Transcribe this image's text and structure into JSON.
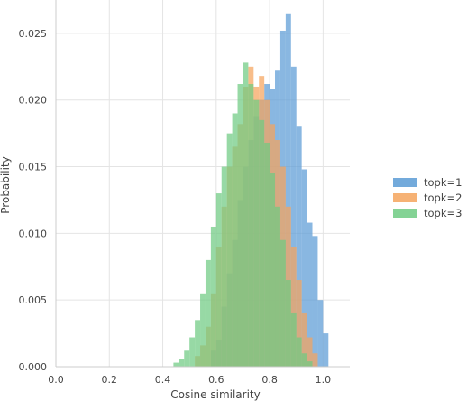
{
  "chart_data": {
    "type": "histogram",
    "xlabel": "Cosine similarity",
    "ylabel": "Probability",
    "xlim": [
      0.0,
      1.1
    ],
    "ylim": [
      0.0,
      0.0275
    ],
    "xticks": [
      "0.0",
      "0.2",
      "0.4",
      "0.6",
      "0.8",
      "1.0"
    ],
    "yticks": [
      "0.000",
      "0.005",
      "0.010",
      "0.015",
      "0.020",
      "0.025"
    ],
    "grid": true,
    "legend_position": "right",
    "bin_width": 0.02,
    "series": [
      {
        "name": "topk=1",
        "color": "#5b9bd5",
        "bins": [
          [
            0.58,
            0.0012
          ],
          [
            0.6,
            0.002
          ],
          [
            0.62,
            0.0045
          ],
          [
            0.64,
            0.007
          ],
          [
            0.66,
            0.0095
          ],
          [
            0.68,
            0.0125
          ],
          [
            0.7,
            0.015
          ],
          [
            0.72,
            0.017
          ],
          [
            0.74,
            0.0188
          ],
          [
            0.76,
            0.02
          ],
          [
            0.78,
            0.0212
          ],
          [
            0.8,
            0.0208
          ],
          [
            0.82,
            0.0222
          ],
          [
            0.84,
            0.0252
          ],
          [
            0.86,
            0.0265
          ],
          [
            0.88,
            0.0225
          ],
          [
            0.9,
            0.018
          ],
          [
            0.92,
            0.0148
          ],
          [
            0.94,
            0.0108
          ],
          [
            0.96,
            0.0098
          ],
          [
            0.98,
            0.005
          ],
          [
            1.0,
            0.0025
          ]
        ]
      },
      {
        "name": "topk=2",
        "color": "#f5a45d",
        "bins": [
          [
            0.52,
            0.0008
          ],
          [
            0.54,
            0.0016
          ],
          [
            0.56,
            0.003
          ],
          [
            0.58,
            0.0055
          ],
          [
            0.6,
            0.009
          ],
          [
            0.62,
            0.012
          ],
          [
            0.64,
            0.015
          ],
          [
            0.66,
            0.0165
          ],
          [
            0.68,
            0.0182
          ],
          [
            0.7,
            0.021
          ],
          [
            0.72,
            0.0225
          ],
          [
            0.74,
            0.021
          ],
          [
            0.76,
            0.0218
          ],
          [
            0.78,
            0.02
          ],
          [
            0.8,
            0.0182
          ],
          [
            0.82,
            0.017
          ],
          [
            0.84,
            0.015
          ],
          [
            0.86,
            0.012
          ],
          [
            0.88,
            0.009
          ],
          [
            0.9,
            0.0065
          ],
          [
            0.92,
            0.004
          ],
          [
            0.94,
            0.0022
          ],
          [
            0.96,
            0.001
          ]
        ]
      },
      {
        "name": "topk=3",
        "color": "#6fcb82",
        "bins": [
          [
            0.44,
            0.0003
          ],
          [
            0.46,
            0.0006
          ],
          [
            0.48,
            0.0012
          ],
          [
            0.5,
            0.0022
          ],
          [
            0.52,
            0.0035
          ],
          [
            0.54,
            0.0055
          ],
          [
            0.56,
            0.008
          ],
          [
            0.58,
            0.0105
          ],
          [
            0.6,
            0.013
          ],
          [
            0.62,
            0.015
          ],
          [
            0.64,
            0.0175
          ],
          [
            0.66,
            0.019
          ],
          [
            0.68,
            0.0212
          ],
          [
            0.7,
            0.0228
          ],
          [
            0.72,
            0.0212
          ],
          [
            0.74,
            0.02
          ],
          [
            0.76,
            0.0185
          ],
          [
            0.78,
            0.0168
          ],
          [
            0.8,
            0.0145
          ],
          [
            0.82,
            0.012
          ],
          [
            0.84,
            0.0095
          ],
          [
            0.86,
            0.0065
          ],
          [
            0.88,
            0.004
          ],
          [
            0.9,
            0.0022
          ],
          [
            0.92,
            0.001
          ],
          [
            0.94,
            0.0004
          ]
        ]
      }
    ]
  }
}
